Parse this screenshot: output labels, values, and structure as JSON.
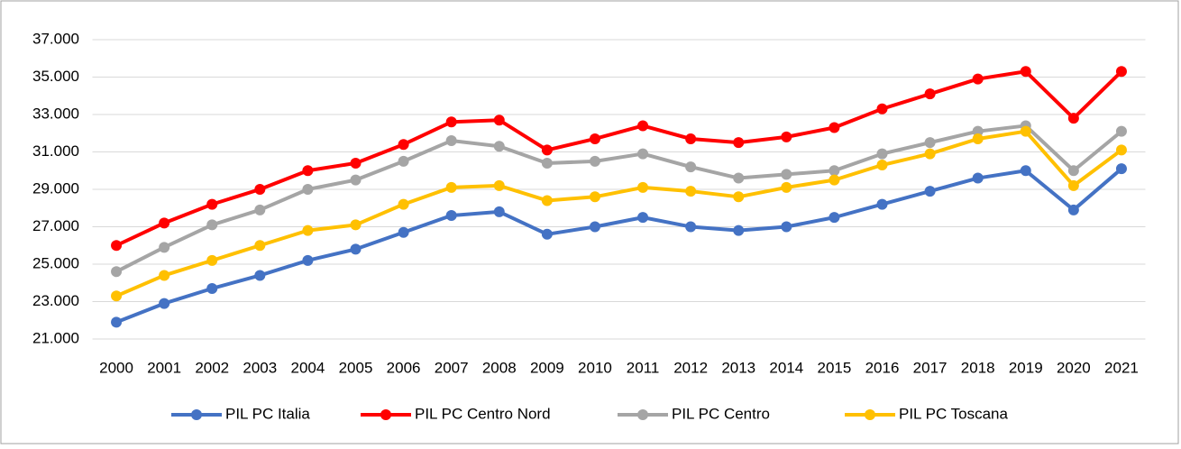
{
  "chart_data": {
    "type": "line",
    "categories": [
      "2000",
      "2001",
      "2002",
      "2003",
      "2004",
      "2005",
      "2006",
      "2007",
      "2008",
      "2009",
      "2010",
      "2011",
      "2012",
      "2013",
      "2014",
      "2015",
      "2016",
      "2017",
      "2018",
      "2019",
      "2020",
      "2021"
    ],
    "series": [
      {
        "name": "PIL PC Italia",
        "color": "#4472c4",
        "values": [
          21900,
          22900,
          23700,
          24400,
          25200,
          25800,
          26700,
          27600,
          27800,
          26600,
          27000,
          27500,
          27000,
          26800,
          27000,
          27500,
          28200,
          28900,
          29600,
          30000,
          27900,
          30100
        ]
      },
      {
        "name": "PIL PC Centro Nord",
        "color": "#ff0000",
        "values": [
          26000,
          27200,
          28200,
          29000,
          30000,
          30400,
          31400,
          32600,
          32700,
          31100,
          31700,
          32400,
          31700,
          31500,
          31800,
          32300,
          33300,
          34100,
          34900,
          35300,
          32800,
          35300
        ]
      },
      {
        "name": "PIL PC Centro",
        "color": "#a5a5a5",
        "values": [
          24600,
          25900,
          27100,
          27900,
          29000,
          29500,
          30500,
          31600,
          31300,
          30400,
          30500,
          30900,
          30200,
          29600,
          29800,
          30000,
          30900,
          31500,
          32100,
          32400,
          30000,
          32100
        ]
      },
      {
        "name": "PIL PC Toscana",
        "color": "#ffc000",
        "values": [
          23300,
          24400,
          25200,
          26000,
          26800,
          27100,
          28200,
          29100,
          29200,
          28400,
          28600,
          29100,
          28900,
          28600,
          29100,
          29500,
          30300,
          30900,
          31700,
          32100,
          29200,
          31100
        ]
      }
    ],
    "ylim": [
      21000,
      37000
    ],
    "yticks": [
      {
        "value": 21000,
        "label": "21.000"
      },
      {
        "value": 23000,
        "label": "23.000"
      },
      {
        "value": 25000,
        "label": "25.000"
      },
      {
        "value": 27000,
        "label": "27.000"
      },
      {
        "value": 29000,
        "label": "29.000"
      },
      {
        "value": 31000,
        "label": "31.000"
      },
      {
        "value": 33000,
        "label": "33.000"
      },
      {
        "value": 35000,
        "label": "35.000"
      },
      {
        "value": 37000,
        "label": "37.000"
      }
    ],
    "grid": true,
    "legend": "bottom"
  }
}
